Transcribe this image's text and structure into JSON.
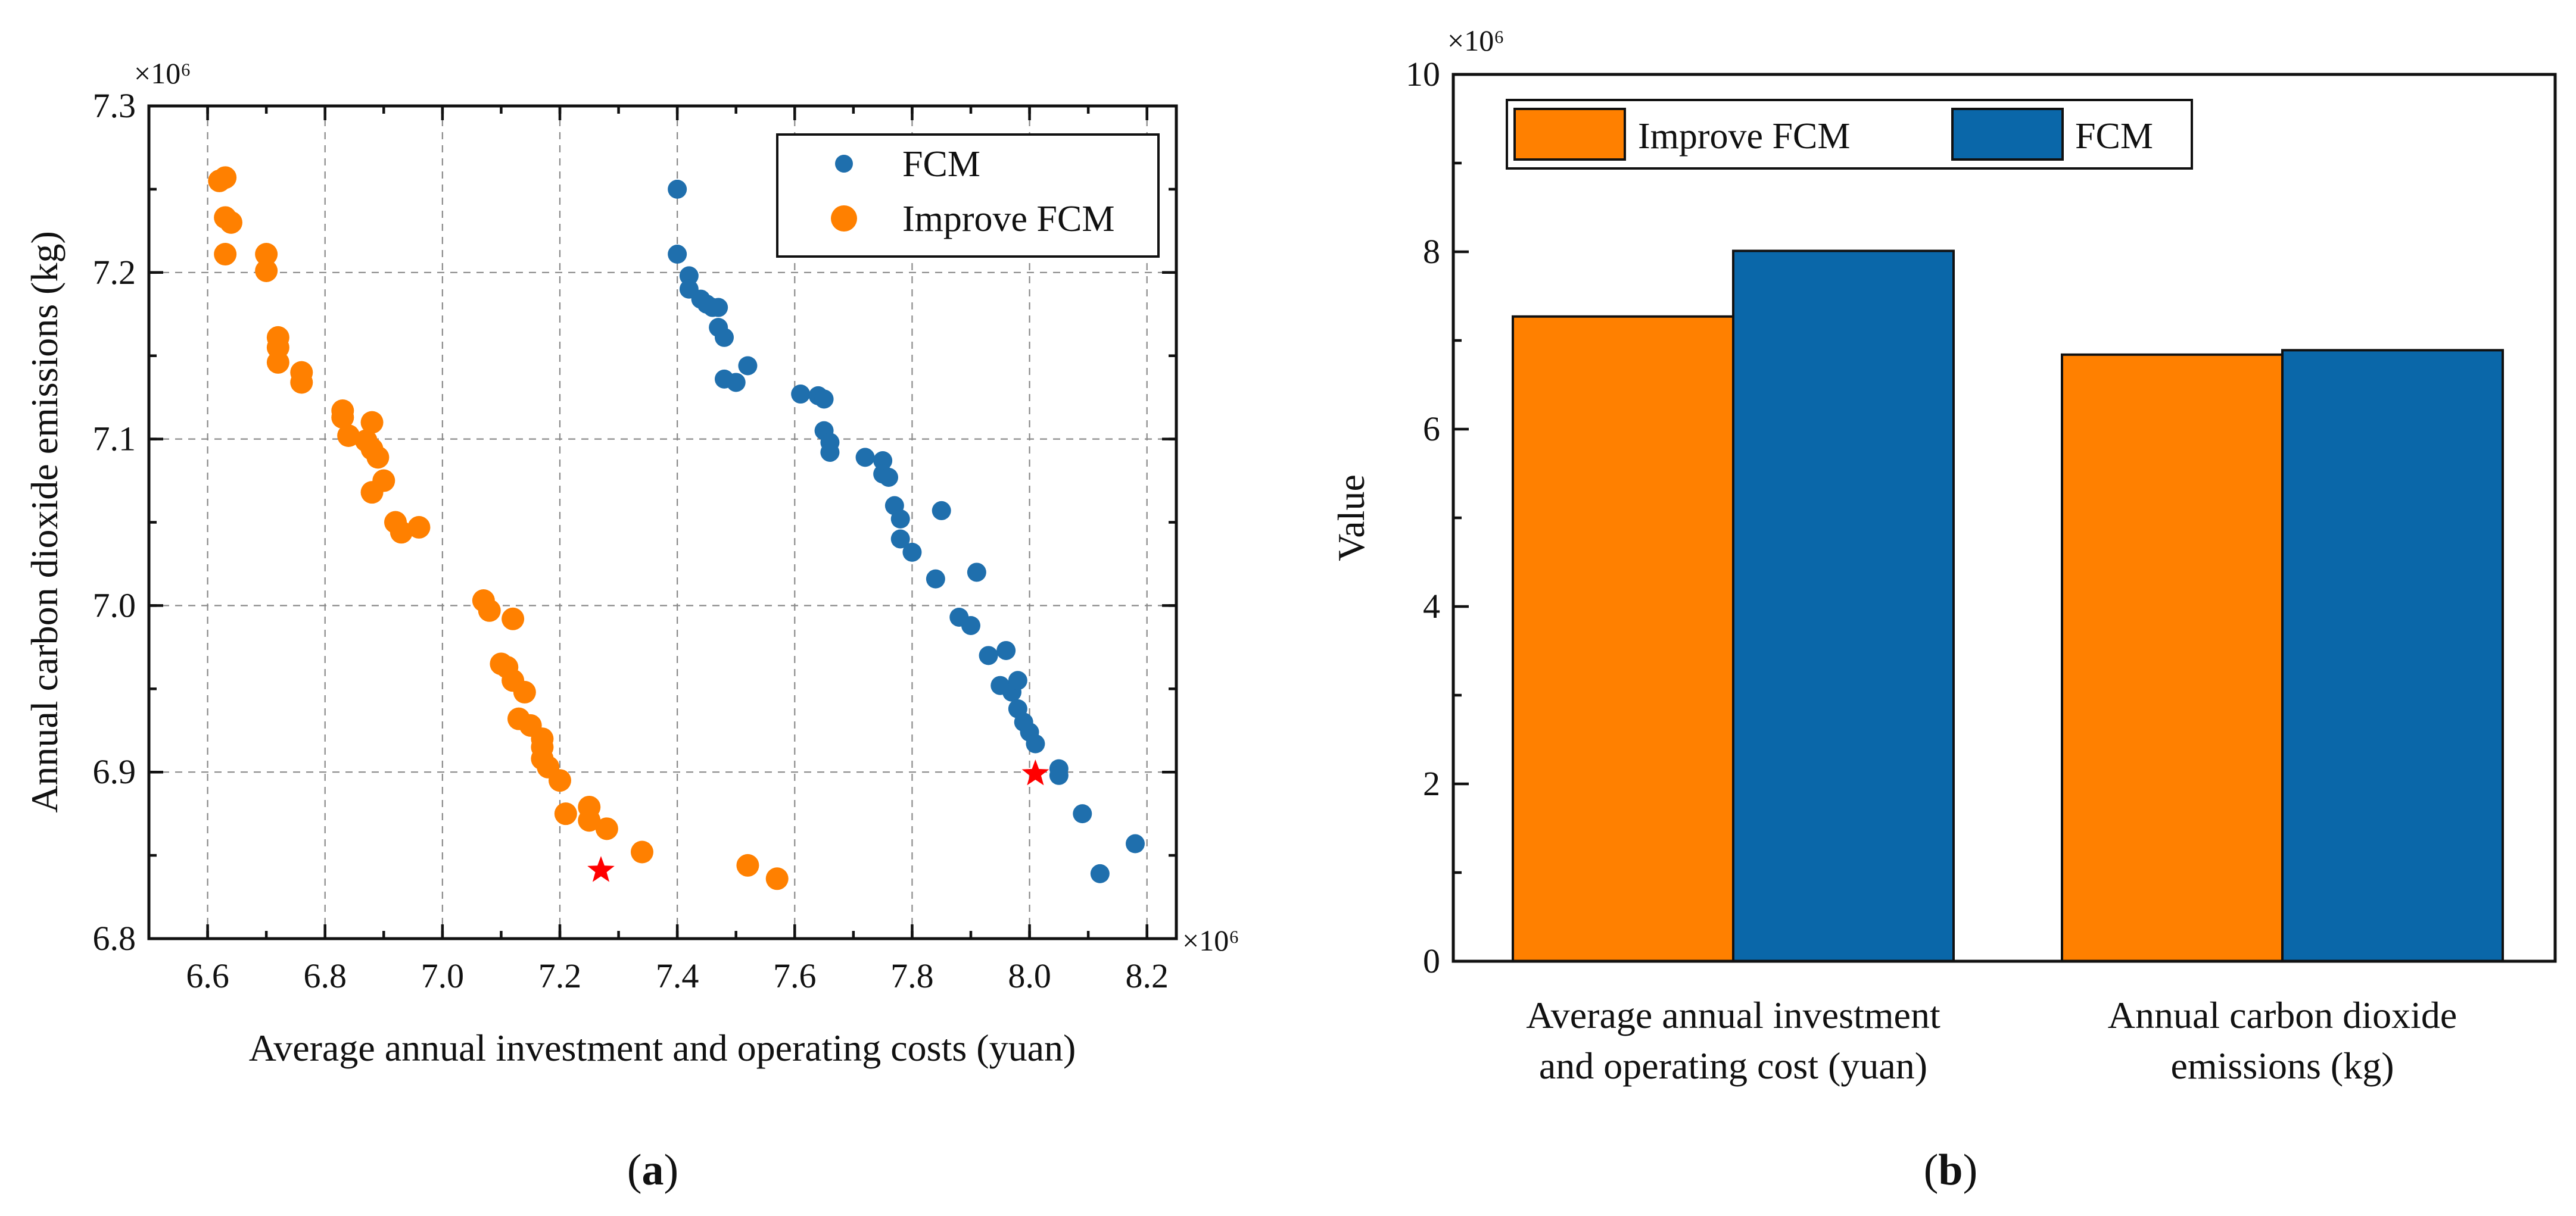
{
  "chart_data": [
    {
      "type": "scatter",
      "panel_label": "a",
      "xlabel": "Average annual investment and operating costs (yuan)",
      "ylabel": "Annual carbon dioxide emissions (kg)",
      "x_multiplier_label": "×10⁶",
      "y_multiplier_label": "×10⁶",
      "xlim": [
        6.5,
        8.25
      ],
      "ylim": [
        6.8,
        7.3
      ],
      "xticks": [
        "6.6",
        "6.8",
        "7.0",
        "7.2",
        "7.4",
        "7.6",
        "7.8",
        "8.0",
        "8.2"
      ],
      "yticks": [
        "6.8",
        "6.9",
        "7.0",
        "7.1",
        "7.2",
        "7.3"
      ],
      "grid": true,
      "legend_position": "top-right",
      "series": [
        {
          "name": "FCM",
          "color": "#1f6fad",
          "points": [
            [
              7.4,
              7.25
            ],
            [
              7.4,
              7.211
            ],
            [
              7.42,
              7.198
            ],
            [
              7.42,
              7.19
            ],
            [
              7.44,
              7.184
            ],
            [
              7.45,
              7.181
            ],
            [
              7.46,
              7.179
            ],
            [
              7.47,
              7.179
            ],
            [
              7.47,
              7.167
            ],
            [
              7.48,
              7.161
            ],
            [
              7.48,
              7.136
            ],
            [
              7.5,
              7.134
            ],
            [
              7.52,
              7.144
            ],
            [
              7.61,
              7.127
            ],
            [
              7.64,
              7.126
            ],
            [
              7.65,
              7.124
            ],
            [
              7.65,
              7.105
            ],
            [
              7.66,
              7.098
            ],
            [
              7.66,
              7.092
            ],
            [
              7.72,
              7.089
            ],
            [
              7.75,
              7.087
            ],
            [
              7.75,
              7.079
            ],
            [
              7.76,
              7.077
            ],
            [
              7.77,
              7.06
            ],
            [
              7.78,
              7.052
            ],
            [
              7.78,
              7.04
            ],
            [
              7.8,
              7.032
            ],
            [
              7.84,
              7.016
            ],
            [
              7.85,
              7.057
            ],
            [
              7.88,
              6.993
            ],
            [
              7.9,
              6.988
            ],
            [
              7.91,
              7.02
            ],
            [
              7.93,
              6.97
            ],
            [
              7.95,
              6.952
            ],
            [
              7.96,
              6.973
            ],
            [
              7.97,
              6.948
            ],
            [
              7.98,
              6.955
            ],
            [
              7.98,
              6.938
            ],
            [
              7.99,
              6.93
            ],
            [
              8.0,
              6.924
            ],
            [
              8.01,
              6.917
            ],
            [
              8.05,
              6.902
            ],
            [
              8.05,
              6.898
            ],
            [
              8.09,
              6.875
            ],
            [
              8.12,
              6.839
            ],
            [
              8.18,
              6.857
            ]
          ]
        },
        {
          "name": "Improve FCM",
          "color": "#ff8000",
          "points": [
            [
              6.63,
              7.257
            ],
            [
              6.62,
              7.255
            ],
            [
              6.63,
              7.233
            ],
            [
              6.64,
              7.23
            ],
            [
              6.63,
              7.211
            ],
            [
              6.7,
              7.211
            ],
            [
              6.7,
              7.201
            ],
            [
              6.72,
              7.161
            ],
            [
              6.72,
              7.155
            ],
            [
              6.72,
              7.146
            ],
            [
              6.76,
              7.14
            ],
            [
              6.76,
              7.134
            ],
            [
              6.83,
              7.117
            ],
            [
              6.83,
              7.113
            ],
            [
              6.88,
              7.11
            ],
            [
              6.84,
              7.102
            ],
            [
              6.87,
              7.099
            ],
            [
              6.88,
              7.094
            ],
            [
              6.89,
              7.089
            ],
            [
              6.9,
              7.075
            ],
            [
              6.88,
              7.068
            ],
            [
              6.92,
              7.05
            ],
            [
              6.93,
              7.044
            ],
            [
              6.96,
              7.047
            ],
            [
              7.07,
              7.003
            ],
            [
              7.08,
              6.997
            ],
            [
              7.12,
              6.992
            ],
            [
              7.1,
              6.965
            ],
            [
              7.11,
              6.963
            ],
            [
              7.12,
              6.955
            ],
            [
              7.14,
              6.948
            ],
            [
              7.13,
              6.932
            ],
            [
              7.15,
              6.928
            ],
            [
              7.17,
              6.92
            ],
            [
              7.17,
              6.915
            ],
            [
              7.17,
              6.908
            ],
            [
              7.18,
              6.903
            ],
            [
              7.2,
              6.895
            ],
            [
              7.25,
              6.879
            ],
            [
              7.25,
              6.871
            ],
            [
              7.28,
              6.866
            ],
            [
              7.21,
              6.875
            ],
            [
              7.34,
              6.852
            ],
            [
              7.52,
              6.844
            ],
            [
              7.57,
              6.836
            ]
          ]
        }
      ],
      "highlighted_points": [
        {
          "series": "Improve FCM",
          "x": 7.27,
          "y": 6.841,
          "marker": "star",
          "color": "#ff0000"
        },
        {
          "series": "FCM",
          "x": 8.01,
          "y": 6.899,
          "marker": "star",
          "color": "#ff0000"
        }
      ]
    },
    {
      "type": "bar",
      "panel_label": "b",
      "ylabel": "Value",
      "y_multiplier_label": "×10⁶",
      "ylim": [
        0,
        10
      ],
      "yticks": [
        "0",
        "2",
        "4",
        "6",
        "8",
        "10"
      ],
      "grid": false,
      "legend_position": "top-left",
      "categories": [
        "Average annual investment and operating cost (yuan)",
        "Annual carbon dioxide emissions (kg)"
      ],
      "category_lines": [
        [
          "Average annual investment",
          "and operating cost (yuan)"
        ],
        [
          "Annual carbon dioxide",
          "emissions (kg)"
        ]
      ],
      "series": [
        {
          "name": "Improve FCM",
          "color": "#ff8000",
          "values": [
            7.27,
            6.84
          ]
        },
        {
          "name": "FCM",
          "color": "#0a67a9",
          "values": [
            8.01,
            6.89
          ]
        }
      ]
    }
  ]
}
